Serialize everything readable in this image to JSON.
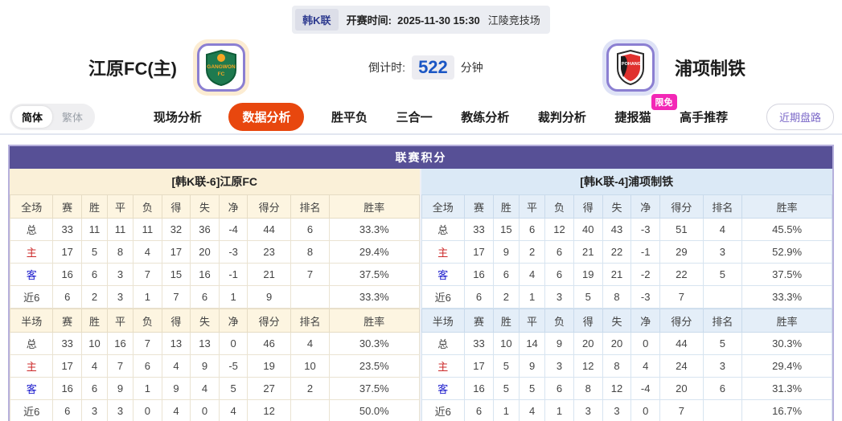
{
  "top_bar": {
    "league": "韩K联",
    "kickoff_label": "开赛时间:",
    "kickoff_time": "2025-11-30 15:30",
    "venue": "江陵竞技场"
  },
  "header": {
    "home": {
      "name": "江原FC(主)",
      "logo": "gangwon-fc-crest"
    },
    "away": {
      "name": "浦项制铁",
      "logo": "pohang-steelers-crest"
    },
    "countdown": {
      "label": "倒计时:",
      "value": "522",
      "unit": "分钟"
    }
  },
  "nav": {
    "lang": {
      "simplified": "简体",
      "traditional": "繁体"
    },
    "tabs": [
      {
        "label": "现场分析",
        "active": false
      },
      {
        "label": "数据分析",
        "active": true
      },
      {
        "label": "胜平负",
        "active": false
      },
      {
        "label": "三合一",
        "active": false
      },
      {
        "label": "教练分析",
        "active": false
      },
      {
        "label": "裁判分析",
        "active": false
      },
      {
        "label": "捷报猫",
        "active": false,
        "badge": "限免"
      },
      {
        "label": "高手推荐",
        "active": false
      }
    ],
    "right_button": "近期盘路"
  },
  "colors": {
    "accent_active_tab": "#e8470e",
    "badge_pink": "#f327b6",
    "board_header_purple": "#575096",
    "home_band_cream": "#faf0d8",
    "away_band_blue": "#dbe9f6",
    "countdown_blue": "#1a56c4",
    "home_label_red": "#cc2a2a",
    "away_label_blue": "#1a1acc"
  },
  "league_table": {
    "title": "联赛积分",
    "home": {
      "team_header": "[韩K联-6]江原FC",
      "full": {
        "columns": [
          "全场",
          "赛",
          "胜",
          "平",
          "负",
          "得",
          "失",
          "净",
          "得分",
          "排名",
          "胜率"
        ],
        "rows": [
          {
            "label": "总",
            "values": [
              "33",
              "11",
              "11",
              "11",
              "32",
              "36",
              "-4",
              "44",
              "6",
              "33.3%"
            ]
          },
          {
            "label": "主",
            "values": [
              "17",
              "5",
              "8",
              "4",
              "17",
              "20",
              "-3",
              "23",
              "8",
              "29.4%"
            ]
          },
          {
            "label": "客",
            "values": [
              "16",
              "6",
              "3",
              "7",
              "15",
              "16",
              "-1",
              "21",
              "7",
              "37.5%"
            ]
          },
          {
            "label": "近6",
            "values": [
              "6",
              "2",
              "3",
              "1",
              "7",
              "6",
              "1",
              "9",
              "",
              "33.3%"
            ]
          }
        ]
      },
      "half": {
        "columns": [
          "半场",
          "赛",
          "胜",
          "平",
          "负",
          "得",
          "失",
          "净",
          "得分",
          "排名",
          "胜率"
        ],
        "rows": [
          {
            "label": "总",
            "values": [
              "33",
              "10",
              "16",
              "7",
              "13",
              "13",
              "0",
              "46",
              "4",
              "30.3%"
            ]
          },
          {
            "label": "主",
            "values": [
              "17",
              "4",
              "7",
              "6",
              "4",
              "9",
              "-5",
              "19",
              "10",
              "23.5%"
            ]
          },
          {
            "label": "客",
            "values": [
              "16",
              "6",
              "9",
              "1",
              "9",
              "4",
              "5",
              "27",
              "2",
              "37.5%"
            ]
          },
          {
            "label": "近6",
            "values": [
              "6",
              "3",
              "3",
              "0",
              "4",
              "0",
              "4",
              "12",
              "",
              "50.0%"
            ]
          }
        ]
      }
    },
    "away": {
      "team_header": "[韩K联-4]浦项制铁",
      "full": {
        "columns": [
          "全场",
          "赛",
          "胜",
          "平",
          "负",
          "得",
          "失",
          "净",
          "得分",
          "排名",
          "胜率"
        ],
        "rows": [
          {
            "label": "总",
            "values": [
              "33",
              "15",
              "6",
              "12",
              "40",
              "43",
              "-3",
              "51",
              "4",
              "45.5%"
            ]
          },
          {
            "label": "主",
            "values": [
              "17",
              "9",
              "2",
              "6",
              "21",
              "22",
              "-1",
              "29",
              "3",
              "52.9%"
            ]
          },
          {
            "label": "客",
            "values": [
              "16",
              "6",
              "4",
              "6",
              "19",
              "21",
              "-2",
              "22",
              "5",
              "37.5%"
            ]
          },
          {
            "label": "近6",
            "values": [
              "6",
              "2",
              "1",
              "3",
              "5",
              "8",
              "-3",
              "7",
              "",
              "33.3%"
            ]
          }
        ]
      },
      "half": {
        "columns": [
          "半场",
          "赛",
          "胜",
          "平",
          "负",
          "得",
          "失",
          "净",
          "得分",
          "排名",
          "胜率"
        ],
        "rows": [
          {
            "label": "总",
            "values": [
              "33",
              "10",
              "14",
              "9",
              "20",
              "20",
              "0",
              "44",
              "5",
              "30.3%"
            ]
          },
          {
            "label": "主",
            "values": [
              "17",
              "5",
              "9",
              "3",
              "12",
              "8",
              "4",
              "24",
              "3",
              "29.4%"
            ]
          },
          {
            "label": "客",
            "values": [
              "16",
              "5",
              "5",
              "6",
              "8",
              "12",
              "-4",
              "20",
              "6",
              "31.3%"
            ]
          },
          {
            "label": "近6",
            "values": [
              "6",
              "1",
              "4",
              "1",
              "3",
              "3",
              "0",
              "7",
              "",
              "16.7%"
            ]
          }
        ]
      }
    }
  }
}
